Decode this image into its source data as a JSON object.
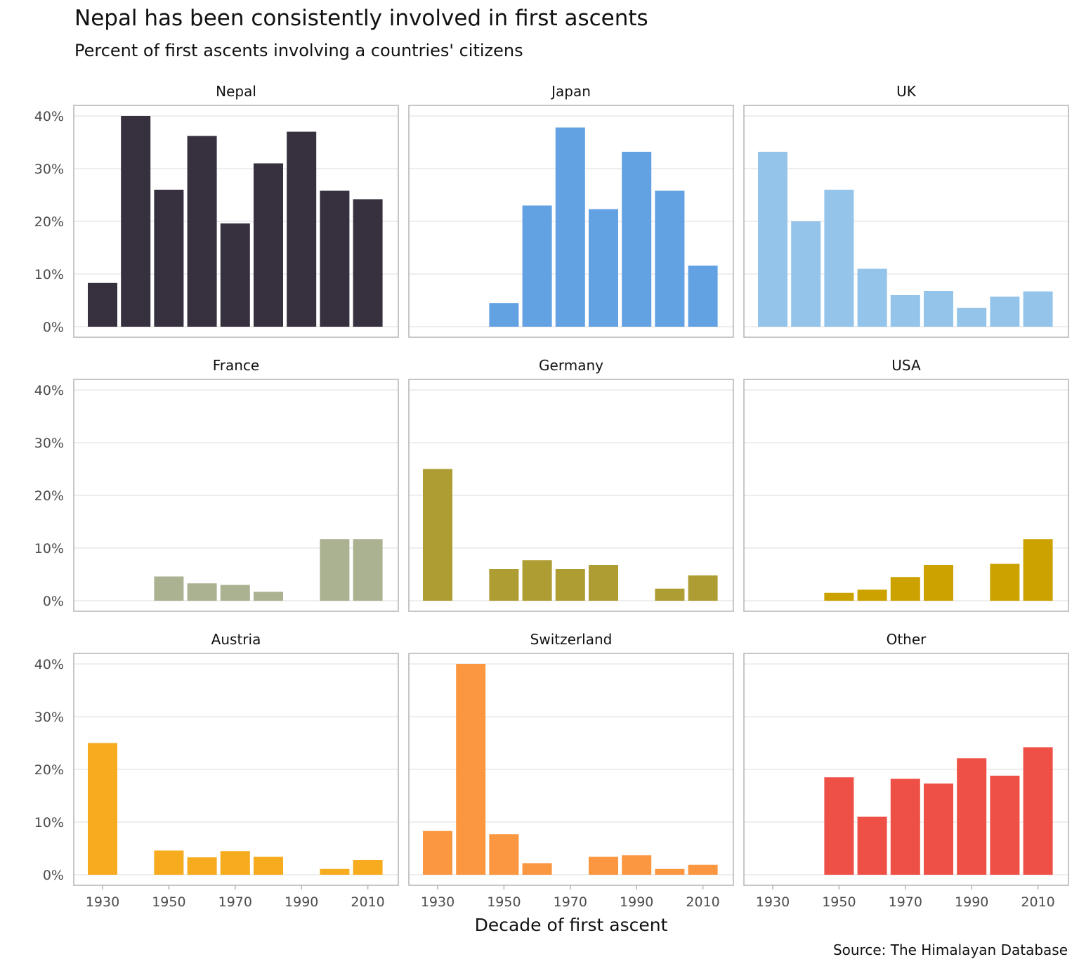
{
  "title": "Nepal has been consistently involved in first ascents",
  "subtitle": "Percent of first ascents involving a countries' citizens",
  "caption": "Source: The Himalayan Database",
  "chart_data": {
    "type": "bar",
    "facet_layout": "3x3 grid",
    "xlabel": "Decade of first ascent",
    "ylabel": "",
    "x": [
      1930,
      1940,
      1950,
      1960,
      1970,
      1980,
      1990,
      2000,
      2010
    ],
    "x_ticks": [
      1930,
      1950,
      1970,
      1990,
      2010
    ],
    "y_ticks": [
      "0%",
      "10%",
      "20%",
      "30%",
      "40%"
    ],
    "ylim": [
      0,
      40
    ],
    "y_unit": "percent",
    "grid": true,
    "legend": "none",
    "panels": [
      {
        "name": "Nepal",
        "color": "#37303f",
        "values": [
          8.3,
          40.0,
          26.0,
          36.2,
          19.6,
          31.0,
          37.0,
          25.8,
          24.2
        ]
      },
      {
        "name": "Japan",
        "color": "#62a1e2",
        "values": [
          null,
          null,
          4.5,
          23.0,
          37.8,
          22.3,
          33.2,
          25.8,
          11.6
        ]
      },
      {
        "name": "UK",
        "color": "#94c4ea",
        "values": [
          33.2,
          20.0,
          26.0,
          11.0,
          6.0,
          6.8,
          3.6,
          5.7,
          6.7
        ]
      },
      {
        "name": "France",
        "color": "#abb292",
        "values": [
          null,
          null,
          4.6,
          3.3,
          3.0,
          1.7,
          null,
          11.7,
          11.7
        ]
      },
      {
        "name": "Germany",
        "color": "#ad9d32",
        "values": [
          25.0,
          null,
          6.0,
          7.7,
          6.0,
          6.8,
          null,
          2.3,
          4.8
        ]
      },
      {
        "name": "USA",
        "color": "#cca200",
        "values": [
          null,
          null,
          1.5,
          2.1,
          4.5,
          6.8,
          null,
          7.0,
          11.7
        ]
      },
      {
        "name": "Austria",
        "color": "#f7ab1f",
        "values": [
          25.0,
          null,
          4.6,
          3.3,
          4.5,
          3.4,
          null,
          1.1,
          2.8
        ]
      },
      {
        "name": "Switzerland",
        "color": "#fb9741",
        "values": [
          8.3,
          40.0,
          7.7,
          2.2,
          null,
          3.4,
          3.7,
          1.1,
          1.9
        ]
      },
      {
        "name": "Other",
        "color": "#ef5046",
        "values": [
          null,
          null,
          18.5,
          11.0,
          18.2,
          17.3,
          22.1,
          18.8,
          24.2
        ]
      }
    ]
  }
}
